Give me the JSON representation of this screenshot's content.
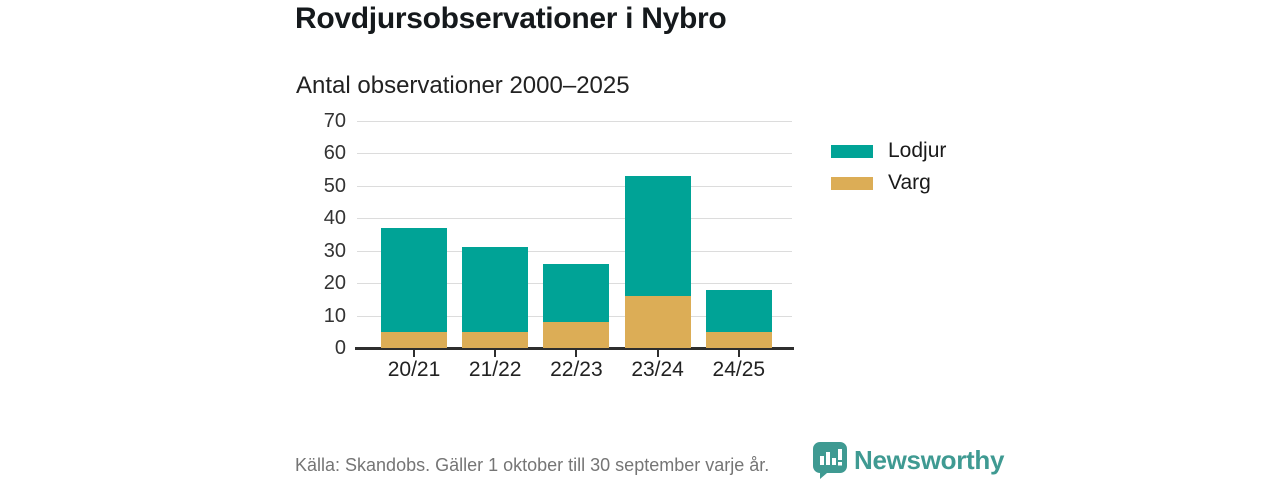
{
  "header": {
    "title": "Rovdjursobservationer i Nybro",
    "subtitle": "Antal observationer 2000–2025"
  },
  "chart_data": {
    "type": "bar",
    "stacked": true,
    "title": "Rovdjursobservationer i Nybro",
    "subtitle": "Antal observationer 2000–2025",
    "categories": [
      "20/21",
      "21/22",
      "22/23",
      "23/24",
      "24/25"
    ],
    "series": [
      {
        "name": "Varg",
        "color": "#dcad56",
        "values": [
          5,
          5,
          8,
          16,
          5
        ]
      },
      {
        "name": "Lodjur",
        "color": "#00a396",
        "values": [
          32,
          26,
          18,
          37,
          13
        ]
      }
    ],
    "stack_totals": [
      37,
      31,
      26,
      53,
      18
    ],
    "xlabel": "",
    "ylabel": "",
    "ylim": [
      0,
      70
    ],
    "yticks": [
      0,
      10,
      20,
      30,
      40,
      50,
      60,
      70
    ],
    "grid": "horizontal",
    "legend_position": "right"
  },
  "legend": {
    "items": [
      {
        "label": "Lodjur",
        "color": "#00a396"
      },
      {
        "label": "Varg",
        "color": "#dcad56"
      }
    ]
  },
  "footer": {
    "source": "Källa: Skandobs. Gäller 1 oktober till 30 september varje år.",
    "brand": "Newsworthy"
  },
  "colors": {
    "lodjur": "#00a396",
    "varg": "#dcad56",
    "gridline": "#dcdcdc",
    "axis": "#2e2e2e",
    "brand_teal": "#3f9a92",
    "source_gray": "#757575"
  }
}
